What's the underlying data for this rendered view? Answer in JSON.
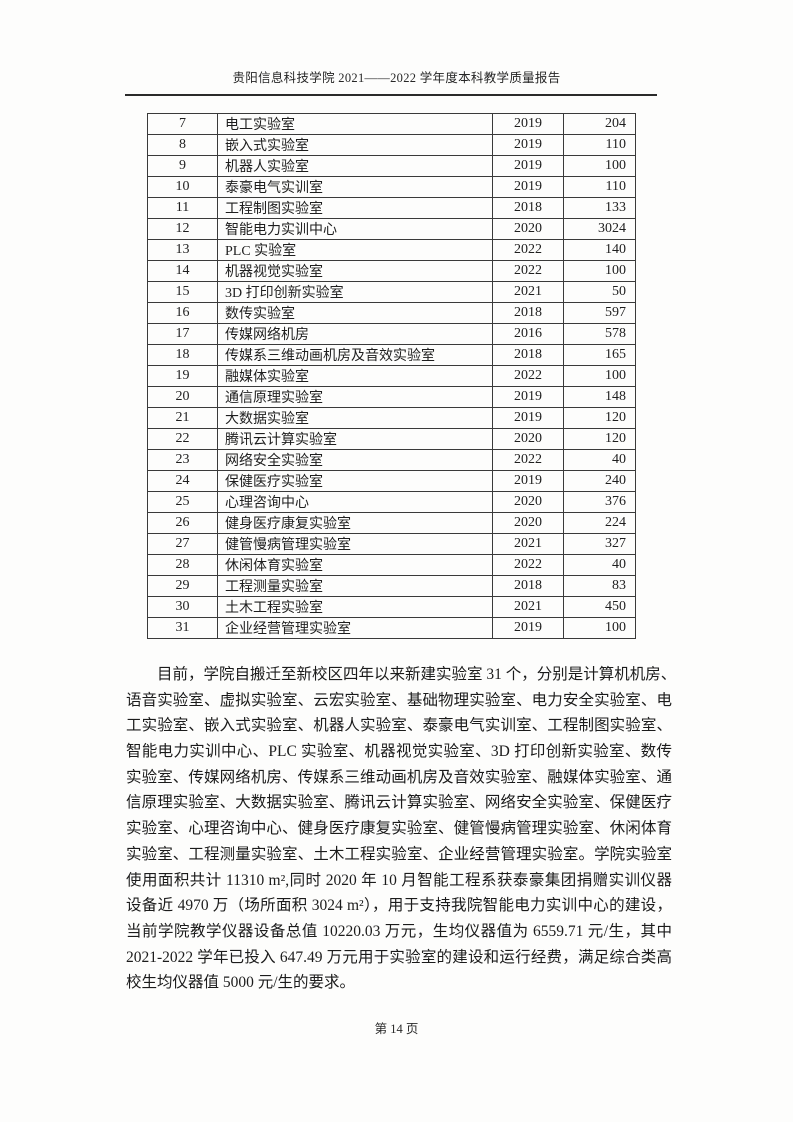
{
  "header": {
    "title": "贵阳信息科技学院 2021——2022 学年度本科教学质量报告"
  },
  "table": {
    "rows": [
      {
        "no": "7",
        "name": "电工实验室",
        "year": "2019",
        "area": "204"
      },
      {
        "no": "8",
        "name": "嵌入式实验室",
        "year": "2019",
        "area": "110"
      },
      {
        "no": "9",
        "name": "机器人实验室",
        "year": "2019",
        "area": "100"
      },
      {
        "no": "10",
        "name": "泰豪电气实训室",
        "year": "2019",
        "area": "110"
      },
      {
        "no": "11",
        "name": "工程制图实验室",
        "year": "2018",
        "area": "133"
      },
      {
        "no": "12",
        "name": "智能电力实训中心",
        "year": "2020",
        "area": "3024"
      },
      {
        "no": "13",
        "name": "PLC 实验室",
        "year": "2022",
        "area": "140"
      },
      {
        "no": "14",
        "name": "机器视觉实验室",
        "year": "2022",
        "area": "100"
      },
      {
        "no": "15",
        "name": "3D 打印创新实验室",
        "year": "2021",
        "area": "50"
      },
      {
        "no": "16",
        "name": "数传实验室",
        "year": "2018",
        "area": "597"
      },
      {
        "no": "17",
        "name": "传媒网络机房",
        "year": "2016",
        "area": "578"
      },
      {
        "no": "18",
        "name": "传媒系三维动画机房及音效实验室",
        "year": "2018",
        "area": "165"
      },
      {
        "no": "19",
        "name": "融媒体实验室",
        "year": "2022",
        "area": "100"
      },
      {
        "no": "20",
        "name": "通信原理实验室",
        "year": "2019",
        "area": "148"
      },
      {
        "no": "21",
        "name": "大数据实验室",
        "year": "2019",
        "area": "120"
      },
      {
        "no": "22",
        "name": "腾讯云计算实验室",
        "year": "2020",
        "area": "120"
      },
      {
        "no": "23",
        "name": "网络安全实验室",
        "year": "2022",
        "area": "40"
      },
      {
        "no": "24",
        "name": "保健医疗实验室",
        "year": "2019",
        "area": "240"
      },
      {
        "no": "25",
        "name": "心理咨询中心",
        "year": "2020",
        "area": "376"
      },
      {
        "no": "26",
        "name": "健身医疗康复实验室",
        "year": "2020",
        "area": "224"
      },
      {
        "no": "27",
        "name": "健管慢病管理实验室",
        "year": "2021",
        "area": "327"
      },
      {
        "no": "28",
        "name": "休闲体育实验室",
        "year": "2022",
        "area": "40"
      },
      {
        "no": "29",
        "name": "工程测量实验室",
        "year": "2018",
        "area": "83"
      },
      {
        "no": "30",
        "name": "土木工程实验室",
        "year": "2021",
        "area": "450"
      },
      {
        "no": "31",
        "name": "企业经营管理实验室",
        "year": "2019",
        "area": "100"
      }
    ]
  },
  "paragraph": {
    "lines": [
      "目前，学院自搬迁至新校区四年以来新建实验室 31 个，分别是计算机机房、",
      "语音实验室、虚拟实验室、云宏实验室、基础物理实验室、电力安全实验室、电",
      "工实验室、嵌入式实验室、机器人实验室、泰豪电气实训室、工程制图实验室、",
      "智能电力实训中心、PLC 实验室、机器视觉实验室、3D 打印创新实验室、数传",
      "实验室、传媒网络机房、传媒系三维动画机房及音效实验室、融媒体实验室、通",
      "信原理实验室、大数据实验室、腾讯云计算实验室、网络安全实验室、保健医疗",
      "实验室、心理咨询中心、健身医疗康复实验室、健管慢病管理实验室、休闲体育",
      "实验室、工程测量实验室、土木工程实验室、企业经营管理实验室。学院实验室",
      "使用面积共计 11310 m²,同时 2020 年 10 月智能工程系获泰豪集团捐赠实训仪器",
      "设备近 4970 万（场所面积 3024 m²），用于支持我院智能电力实训中心的建设，",
      "当前学院教学仪器设备总值 10220.03 万元，生均仪器值为 6559.71 元/生，其中",
      "2021-2022 学年已投入 647.49 万元用于实验室的建设和运行经费，满足综合类高",
      "校生均仪器值 5000 元/生的要求。"
    ]
  },
  "footer": {
    "page_label": "第 14 页"
  }
}
